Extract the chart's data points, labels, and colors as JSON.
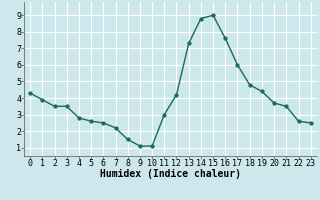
{
  "x": [
    0,
    1,
    2,
    3,
    4,
    5,
    6,
    7,
    8,
    9,
    10,
    11,
    12,
    13,
    14,
    15,
    16,
    17,
    18,
    19,
    20,
    21,
    22,
    23
  ],
  "y": [
    4.3,
    3.9,
    3.5,
    3.5,
    2.8,
    2.6,
    2.5,
    2.2,
    1.5,
    1.1,
    1.1,
    3.0,
    4.2,
    7.3,
    8.8,
    9.0,
    7.6,
    6.0,
    4.8,
    4.4,
    3.7,
    3.5,
    2.6,
    2.5
  ],
  "line_color": "#1a6b5a",
  "marker_color": "#1a6b5a",
  "bg_color": "#cce8ec",
  "grid_color": "#ffffff",
  "xlabel": "Humidex (Indice chaleur)",
  "xlim": [
    -0.5,
    23.5
  ],
  "ylim": [
    0.5,
    9.8
  ],
  "yticks": [
    1,
    2,
    3,
    4,
    5,
    6,
    7,
    8,
    9
  ],
  "xticks": [
    0,
    1,
    2,
    3,
    4,
    5,
    6,
    7,
    8,
    9,
    10,
    11,
    12,
    13,
    14,
    15,
    16,
    17,
    18,
    19,
    20,
    21,
    22,
    23
  ],
  "xlabel_fontsize": 7,
  "tick_fontsize": 6,
  "marker_size": 2.5,
  "line_width": 1.0
}
